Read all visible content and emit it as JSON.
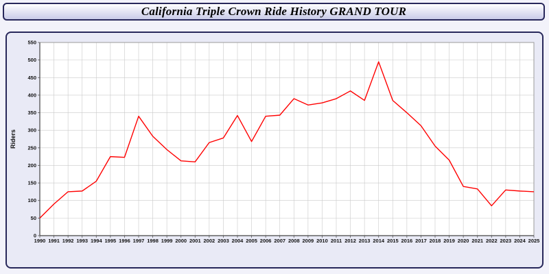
{
  "header": {
    "title": "California Triple Crown Ride History GRAND TOUR"
  },
  "chart_data": {
    "type": "line",
    "title": "California Triple Crown Ride History GRAND TOUR",
    "xlabel": "",
    "ylabel": "Riders",
    "ylim": [
      0,
      550
    ],
    "ytick_step": 50,
    "grid": true,
    "legend": "none",
    "line_color": "#ff0000",
    "plot_bg": "#ffffff",
    "grid_color": "#c9c9c9",
    "categories": [
      1990,
      1991,
      1992,
      1993,
      1994,
      1995,
      1996,
      1997,
      1998,
      1999,
      2000,
      2001,
      2002,
      2003,
      2004,
      2005,
      2006,
      2007,
      2008,
      2009,
      2010,
      2011,
      2012,
      2013,
      2014,
      2015,
      2016,
      2017,
      2018,
      2019,
      2020,
      2021,
      2022,
      2023,
      2024,
      2025
    ],
    "series": [
      {
        "name": "Riders",
        "values": [
          50,
          90,
          125,
          127,
          155,
          225,
          223,
          340,
          283,
          245,
          213,
          210,
          265,
          278,
          342,
          268,
          340,
          343,
          390,
          372,
          378,
          390,
          412,
          385,
          495,
          385,
          350,
          313,
          255,
          215,
          140,
          133,
          85,
          130,
          127,
          125
        ]
      }
    ]
  }
}
